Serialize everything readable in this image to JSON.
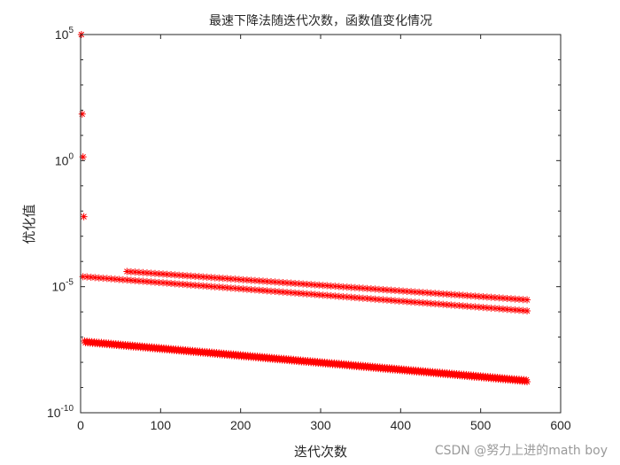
{
  "chart_data": {
    "type": "scatter",
    "title": "最速下降法随迭代次数，函数值变化情况",
    "xlabel": "迭代次数",
    "ylabel": "优化值",
    "xlim": [
      0,
      600
    ],
    "ylim": [
      1e-10,
      100000.0
    ],
    "yscale": "log",
    "grid": false,
    "marker": "*",
    "color": "#ff0000",
    "x_ticks": [
      "0",
      "100",
      "200",
      "300",
      "400",
      "500",
      "600"
    ],
    "y_ticks": [
      {
        "base": "10",
        "exp": "-10",
        "value": 1e-10
      },
      {
        "base": "10",
        "exp": "-5",
        "value": 1e-05
      },
      {
        "base": "10",
        "exp": "0",
        "value": 1
      },
      {
        "base": "10",
        "exp": "5",
        "value": 100000.0
      }
    ],
    "series": [
      {
        "segment": "initial iterations",
        "points": [
          [
            1,
            100000
          ],
          [
            2,
            70
          ],
          [
            3,
            1.4
          ],
          [
            4,
            0.006
          ]
        ]
      },
      {
        "segment": "upper band",
        "x_start": 58,
        "x_end": 558,
        "step": 5,
        "y_start": 4e-05,
        "y_end": 3e-06
      },
      {
        "segment": "middle band",
        "x_start": 3,
        "x_end": 558,
        "step": 5,
        "y_start": 2.5e-05,
        "y_end": 1.1e-06
      },
      {
        "segment": "lower band a",
        "x_start": 5,
        "x_end": 558,
        "step": 3,
        "y_start": 7e-08,
        "y_end": 2e-09
      },
      {
        "segment": "lower band b",
        "x_start": 6,
        "x_end": 558,
        "step": 3,
        "y_start": 6e-08,
        "y_end": 1.7e-09
      }
    ]
  },
  "watermark": "CSDN @努力上进的math boy"
}
